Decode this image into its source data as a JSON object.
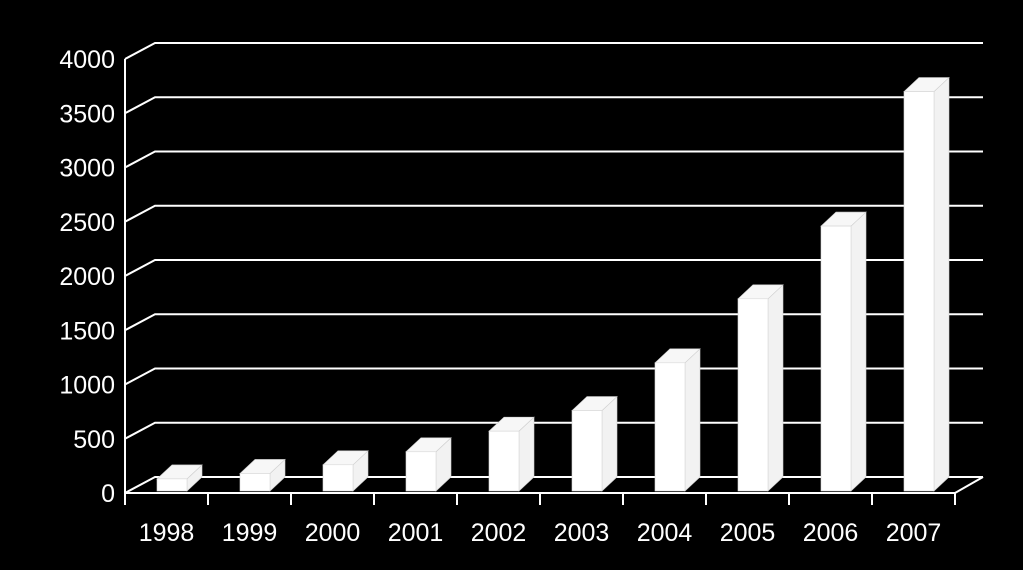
{
  "chart_data": {
    "type": "bar",
    "title": "",
    "xlabel": "",
    "ylabel": "",
    "categories": [
      "1998",
      "1999",
      "2000",
      "2001",
      "2002",
      "2003",
      "2004",
      "2005",
      "2006",
      "2007"
    ],
    "values": [
      130,
      180,
      260,
      380,
      570,
      760,
      1200,
      1790,
      2460,
      3700
    ],
    "ylim": [
      0,
      4000
    ],
    "yticks": [
      "0",
      "500",
      "1000",
      "1500",
      "2000",
      "2500",
      "3000",
      "3500",
      "4000"
    ],
    "grid": true,
    "legend": "none",
    "style": "3d",
    "colors": {
      "background": "#000000",
      "bar_front": "#ffffff",
      "bar_side": "#f2f2f2",
      "bar_top": "#f7f7f7",
      "axis": "#ffffff",
      "gridline": "#ffffff",
      "text": "#ffffff"
    }
  }
}
